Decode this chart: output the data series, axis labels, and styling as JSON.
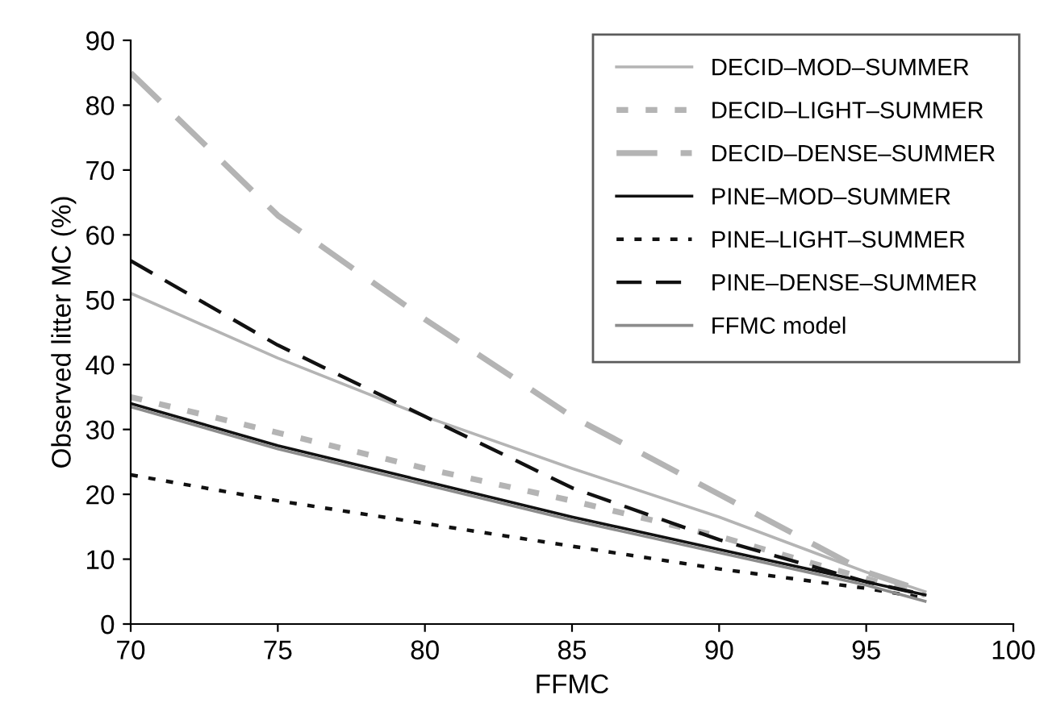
{
  "chart_data": {
    "type": "line",
    "xlabel": "FFMC",
    "ylabel": "Observed litter MC (%)",
    "x": [
      70,
      75,
      80,
      85,
      90,
      95,
      97
    ],
    "series": [
      {
        "name": "DECID–MOD–SUMMER",
        "color": "#b4b4b4",
        "line_style": "solid",
        "values": [
          51,
          41,
          32,
          24,
          16.5,
          8,
          5
        ]
      },
      {
        "name": "DECID–LIGHT–SUMMER",
        "color": "#b4b4b4",
        "line_style": "dotted",
        "values": [
          35,
          29.5,
          24,
          19,
          13.5,
          7,
          4.5
        ]
      },
      {
        "name": "DECID–DENSE–SUMMER",
        "color": "#b4b4b4",
        "line_style": "dashed",
        "values": [
          85,
          63,
          47,
          32,
          20,
          8,
          5
        ]
      },
      {
        "name": "PINE–MOD–SUMMER",
        "color": "#111111",
        "line_style": "solid",
        "values": [
          34,
          27.5,
          22,
          16.5,
          11.5,
          6.5,
          4.5
        ]
      },
      {
        "name": "PINE–LIGHT–SUMMER",
        "color": "#111111",
        "line_style": "dotted",
        "values": [
          23,
          19,
          15.5,
          12,
          8.5,
          5.5,
          4
        ]
      },
      {
        "name": "PINE–DENSE–SUMMER",
        "color": "#111111",
        "line_style": "dashed",
        "values": [
          56,
          43,
          32,
          21,
          13,
          6.5,
          4.5
        ]
      },
      {
        "name": "FFMC model",
        "color": "#8c8c8c",
        "line_style": "solid",
        "values": [
          33.5,
          27,
          21.5,
          16,
          11,
          6,
          3.5
        ]
      }
    ],
    "xlim": [
      70,
      100
    ],
    "xticks": [
      70,
      75,
      80,
      85,
      90,
      95,
      100
    ],
    "ylim": [
      0,
      90
    ],
    "yticks": [
      0,
      10,
      20,
      30,
      40,
      50,
      60,
      70,
      80,
      90
    ],
    "grid": false,
    "legend": "top right",
    "marker": "none"
  }
}
